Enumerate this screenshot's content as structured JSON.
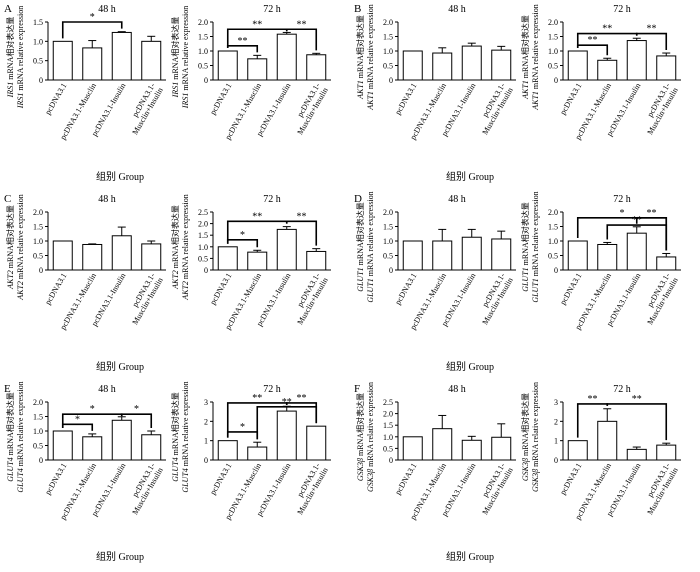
{
  "chart_data": {
    "type": "bar",
    "categories": [
      "pcDNA3.1",
      "pcDNA3.1-Musclin",
      "pcDNA3.1-Insulin",
      "pcDNA3.1-\nMusclin+Insulin"
    ],
    "xlabel": "组别 Group",
    "panels": [
      {
        "letter": "A",
        "gene": "IRS1",
        "ylabel_cn": "mRNA相对表达量",
        "ylabel_en": "mRNA relative expression",
        "subplots": [
          {
            "title": "48 h",
            "values": [
              1.0,
              0.83,
              1.23,
              1.0
            ],
            "errors": [
              0.0,
              0.19,
              0.02,
              0.13
            ],
            "ylim": [
              0,
              1.5
            ],
            "ticks": [
              "0",
              "0.5",
              "1.0",
              "1.5"
            ],
            "sig": [
              {
                "a": 0,
                "b": 2,
                "label": "*",
                "level": 1.5
              }
            ]
          },
          {
            "title": "72 h",
            "values": [
              1.0,
              0.73,
              1.58,
              0.87
            ],
            "errors": [
              0.0,
              0.12,
              0.06,
              0.05
            ],
            "ylim": [
              0,
              2.0
            ],
            "ticks": [
              "0",
              "0.5",
              "1.0",
              "1.5",
              "2.0"
            ],
            "sig": [
              {
                "a": 0,
                "b": 1,
                "label": "**",
                "level": 1.18
              },
              {
                "a": 0,
                "b": 2,
                "label": "**",
                "level": 1.75
              },
              {
                "a": 2,
                "b": 3,
                "label": "**",
                "level": 1.75
              }
            ]
          }
        ]
      },
      {
        "letter": "B",
        "gene": "AKT1",
        "ylabel_cn": "mRNA相对表达量",
        "ylabel_en": "mRNA relative expression",
        "subplots": [
          {
            "title": "48 h",
            "values": [
              1.0,
              0.93,
              1.17,
              1.03
            ],
            "errors": [
              0.0,
              0.18,
              0.1,
              0.13
            ],
            "ylim": [
              0,
              2.0
            ],
            "ticks": [
              "0",
              "0.5",
              "1.0",
              "1.5",
              "2.0"
            ],
            "sig": []
          },
          {
            "title": "72 h",
            "values": [
              1.0,
              0.68,
              1.36,
              0.83
            ],
            "errors": [
              0.0,
              0.07,
              0.08,
              0.1
            ],
            "ylim": [
              0,
              2.0
            ],
            "ticks": [
              "0",
              "0.5",
              "1.0",
              "1.5",
              "2.0"
            ],
            "sig": [
              {
                "a": 0,
                "b": 1,
                "label": "**",
                "level": 1.2
              },
              {
                "a": 0,
                "b": 2,
                "label": "**",
                "level": 1.6
              },
              {
                "a": 2,
                "b": 3,
                "label": "**",
                "level": 1.6
              }
            ]
          }
        ]
      },
      {
        "letter": "C",
        "gene": "AKT2",
        "ylabel_cn": "mRNA相对表达量",
        "ylabel_en": "mRNA relative expression",
        "subplots": [
          {
            "title": "48 h",
            "values": [
              1.0,
              0.88,
              1.18,
              0.9
            ],
            "errors": [
              0.0,
              0.02,
              0.3,
              0.1
            ],
            "ylim": [
              0,
              2.0
            ],
            "ticks": [
              "0",
              "0.5",
              "1.0",
              "1.5",
              "2.0"
            ],
            "sig": []
          },
          {
            "title": "72 h",
            "values": [
              1.0,
              0.77,
              1.75,
              0.8
            ],
            "errors": [
              0.0,
              0.08,
              0.12,
              0.12
            ],
            "ylim": [
              0,
              2.5
            ],
            "ticks": [
              "0",
              "0.5",
              "1.0",
              "1.5",
              "2.0",
              "2.5"
            ],
            "sig": [
              {
                "a": 0,
                "b": 1,
                "label": "*",
                "level": 1.3
              },
              {
                "a": 0,
                "b": 2,
                "label": "**",
                "level": 2.1
              },
              {
                "a": 2,
                "b": 3,
                "label": "**",
                "level": 2.1
              }
            ]
          }
        ]
      },
      {
        "letter": "D",
        "gene": "GLUT1",
        "ylabel_cn": "mRNA相对表达量",
        "ylabel_en": "mRNA relative expression",
        "subplots": [
          {
            "title": "48 h",
            "values": [
              1.0,
              1.0,
              1.13,
              1.07
            ],
            "errors": [
              0.0,
              0.4,
              0.27,
              0.27
            ],
            "ylim": [
              0,
              2.0
            ],
            "ticks": [
              "0",
              "0.5",
              "1.0",
              "1.5",
              "2.0"
            ],
            "sig": []
          },
          {
            "title": "72 h",
            "values": [
              1.0,
              0.88,
              1.27,
              0.45
            ],
            "errors": [
              0.0,
              0.07,
              0.22,
              0.12
            ],
            "ylim": [
              0,
              2.0
            ],
            "ticks": [
              "0",
              "0.5",
              "1.0",
              "1.5",
              "2.0"
            ],
            "sig": [
              {
                "a": 0,
                "b": 3,
                "label": "*",
                "level": 1.8
              },
              {
                "a": 1,
                "b": 3,
                "label": "**",
                "level": 1.55
              },
              {
                "a": 2,
                "b": 3,
                "label": "**",
                "level": 1.8
              }
            ]
          }
        ]
      },
      {
        "letter": "E",
        "gene": "GLUT4",
        "ylabel_cn": "mRNA相对表达量",
        "ylabel_en": "mRNA relative expression",
        "subplots": [
          {
            "title": "48 h",
            "values": [
              1.0,
              0.8,
              1.37,
              0.87
            ],
            "errors": [
              0.0,
              0.1,
              0.12,
              0.13
            ],
            "ylim": [
              0,
              2.0
            ],
            "ticks": [
              "0",
              "0.5",
              "1.0",
              "1.5",
              "2.0"
            ],
            "sig": [
              {
                "a": 0,
                "b": 1,
                "label": "*",
                "level": 1.23
              },
              {
                "a": 0,
                "b": 2,
                "label": "*",
                "level": 1.58
              },
              {
                "a": 2,
                "b": 3,
                "label": "*",
                "level": 1.58
              }
            ]
          },
          {
            "title": "72 h",
            "values": [
              1.0,
              0.67,
              2.53,
              1.75
            ],
            "errors": [
              0.0,
              0.25,
              0.25,
              0.0
            ],
            "ylim": [
              0,
              3.0
            ],
            "ticks": [
              "0",
              "1",
              "2",
              "3"
            ],
            "sig": [
              {
                "a": 0,
                "b": 1,
                "label": "*",
                "level": 1.45
              },
              {
                "a": 0,
                "b": 2,
                "label": "**",
                "level": 2.95
              },
              {
                "a": 1,
                "b": 3,
                "label": "**",
                "level": 2.75
              },
              {
                "a": 2,
                "b": 3,
                "label": "**",
                "level": 2.95
              }
            ]
          }
        ]
      },
      {
        "letter": "F",
        "gene": "GSK3β",
        "ylabel_cn": "mRNA相对表达量",
        "ylabel_en": "mRNA relative expression",
        "subplots": [
          {
            "title": "48 h",
            "values": [
              1.0,
              1.35,
              0.85,
              0.98
            ],
            "errors": [
              0.0,
              0.57,
              0.17,
              0.58
            ],
            "ylim": [
              0,
              2.5
            ],
            "ticks": [
              "0",
              "0.5",
              "1.0",
              "1.5",
              "2.0",
              "2.5"
            ],
            "sig": []
          },
          {
            "title": "72 h",
            "values": [
              1.0,
              2.0,
              0.55,
              0.77
            ],
            "errors": [
              0.0,
              0.65,
              0.12,
              0.1
            ],
            "ylim": [
              0,
              3.0
            ],
            "ticks": [
              "0",
              "1",
              "2",
              "3"
            ],
            "sig": [
              {
                "a": 0,
                "b": 1,
                "label": "**",
                "level": 2.9
              },
              {
                "a": 1,
                "b": 3,
                "label": "**",
                "level": 2.9
              }
            ]
          }
        ]
      }
    ]
  }
}
